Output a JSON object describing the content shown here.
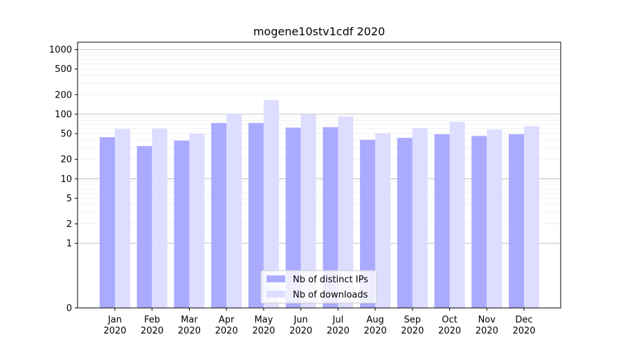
{
  "chart_data": {
    "type": "bar",
    "title": "mogene10stv1cdf 2020",
    "xlabel": "",
    "ylabel": "",
    "y_scale": "symlog",
    "ylim": [
      0,
      1300
    ],
    "y_ticks": [
      0,
      1,
      2,
      5,
      10,
      20,
      50,
      100,
      200,
      500,
      1000
    ],
    "y_tick_labels": [
      "0",
      "1",
      "2",
      "5",
      "10",
      "20",
      "50",
      "100",
      "200",
      "500",
      "1000"
    ],
    "categories": [
      "Jan\n2020",
      "Feb\n2020",
      "Mar\n2020",
      "Apr\n2020",
      "May\n2020",
      "Jun\n2020",
      "Jul\n2020",
      "Aug\n2020",
      "Sep\n2020",
      "Oct\n2020",
      "Nov\n2020",
      "Dec\n2020"
    ],
    "series": [
      {
        "name": "Nb of distinct IPs",
        "color": "#aaaaff",
        "values": [
          44,
          32,
          39,
          73,
          73,
          62,
          63,
          40,
          43,
          49,
          46,
          49
        ]
      },
      {
        "name": "Nb of downloads",
        "color": "#ddddff",
        "values": [
          59,
          60,
          50,
          102,
          166,
          99,
          92,
          51,
          61,
          76,
          58,
          65
        ]
      }
    ],
    "grid": true,
    "legend_position": "lower center"
  }
}
